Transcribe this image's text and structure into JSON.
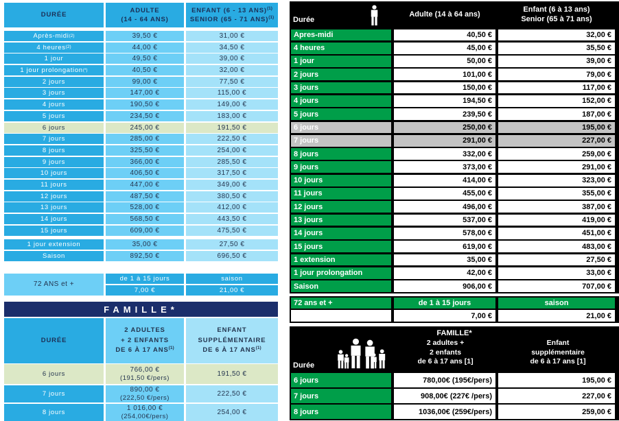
{
  "colors": {
    "blue": "#29ABE2",
    "blue_mid": "#6DCFF6",
    "blue_light": "#A4E2F9",
    "navy_bar": "#1B2E6B",
    "pale_green": "#DCE8C6",
    "green": "#009E49",
    "gray_highlight": "#C3C3C3",
    "black": "#000000"
  },
  "icons": {
    "adult": "standing-person-pictogram",
    "family": "family-group-pictogram"
  },
  "left_table": {
    "header": {
      "duree": "DURÉE",
      "adulte1": "ADULTE",
      "adulte2": "(14 - 64 ANS)",
      "enfant1": "ENFANT (6 - 13 ANS)",
      "enfant1_sup": "(1)",
      "enfant2": "SENIOR (65 - 71 ANS)",
      "enfant2_sup": "(1)"
    },
    "rows": [
      {
        "label": "Après-midi",
        "sup": "(2)",
        "adult": "39,50 €",
        "child": "31,00 €"
      },
      {
        "label": "4 heures",
        "sup": "(2)",
        "adult": "44,00 €",
        "child": "34,50 €"
      },
      {
        "label": "1 jour",
        "adult": "49,50 €",
        "child": "39,00 €"
      },
      {
        "label": "1 jour prolongation",
        "sup": "(*)",
        "adult": "40,50 €",
        "child": "32,00 €"
      },
      {
        "label": "2 jours",
        "adult": "99,00 €",
        "child": "77,50 €"
      },
      {
        "label": "3 jours",
        "adult": "147,00 €",
        "child": "115,00 €"
      },
      {
        "label": "4 jours",
        "adult": "190,50 €",
        "child": "149,00 €"
      },
      {
        "label": "5 jours",
        "adult": "234,50 €",
        "child": "183,00 €"
      },
      {
        "label": "6 jours",
        "adult": "245,00 €",
        "child": "191,50 €",
        "highlight": true
      },
      {
        "label": "7 jours",
        "adult": "285,00 €",
        "child": "222,50 €"
      },
      {
        "label": "8 jours",
        "adult": "325,50 €",
        "child": "254,00 €"
      },
      {
        "label": "9 jours",
        "adult": "366,00 €",
        "child": "285,50 €"
      },
      {
        "label": "10 jours",
        "adult": "406,50 €",
        "child": "317,50 €"
      },
      {
        "label": "11 jours",
        "adult": "447,00 €",
        "child": "349,00 €"
      },
      {
        "label": "12 jours",
        "adult": "487,50 €",
        "child": "380,50 €"
      },
      {
        "label": "13 jours",
        "adult": "528,00 €",
        "child": "412,00 €"
      },
      {
        "label": "14 jours",
        "adult": "568,50 €",
        "child": "443,50 €"
      },
      {
        "label": "15 jours",
        "adult": "609,00 €",
        "child": "475,50 €"
      }
    ],
    "extra_rows": [
      {
        "label": "1 jour extension",
        "adult": "35,00 €",
        "child": "27,50 €"
      },
      {
        "label": "Saison",
        "adult": "892,50 €",
        "child": "696,50 €"
      }
    ],
    "senior": {
      "label": "72 ANS et +",
      "col1_header": "de 1 à 15 jours",
      "col2_header": "saison",
      "col1_value": "7,00 €",
      "col2_value": "21,00 €"
    },
    "famille": {
      "title": "FAMILLE*",
      "header": {
        "duree": "DURÉE",
        "col1": [
          "2 ADULTES",
          "+ 2 ENFANTS",
          "DE 6 À 17 ANS"
        ],
        "col1_sup": "(1)",
        "col2": [
          "ENFANT",
          "SUPPLÉMENTAIRE",
          "DE 6 À 17 ANS"
        ],
        "col2_sup": "(1)"
      },
      "rows": [
        {
          "label": "6 jours",
          "price": "766,00 €",
          "per": "(191,50 €/pers)",
          "child": "191,50 €",
          "highlight": true
        },
        {
          "label": "7 jours",
          "price": "890,00 €",
          "per": "(222,50 €/pers)",
          "child": "222,50 €"
        },
        {
          "label": "8 jours",
          "price": "1 016,00 €",
          "per": "(254,00€/pers)",
          "child": "254,00 €"
        }
      ]
    }
  },
  "right_table": {
    "header": {
      "duree": "Durée",
      "adulte": "Adulte (14 à 64 ans)",
      "enfant1": "Enfant (6 à 13 ans)",
      "enfant2": "Senior (65 à 71 ans)"
    },
    "rows": [
      {
        "label": "Apres-midi",
        "adult": "40,50 €",
        "child": "32,00 €"
      },
      {
        "label": "4 heures",
        "adult": "45,00 €",
        "child": "35,50 €"
      },
      {
        "label": "1 jour",
        "adult": "50,00 €",
        "child": "39,00 €"
      },
      {
        "label": "2 jours",
        "adult": "101,00 €",
        "child": "79,00 €"
      },
      {
        "label": "3 jours",
        "adult": "150,00 €",
        "child": "117,00 €"
      },
      {
        "label": "4 jours",
        "adult": "194,50 €",
        "child": "152,00 €"
      },
      {
        "label": "5 jours",
        "adult": "239,50 €",
        "child": "187,00 €"
      },
      {
        "label": "6 jours",
        "adult": "250,00 €",
        "child": "195,00 €",
        "highlight": true
      },
      {
        "label": "7 jours",
        "adult": "291,00 €",
        "child": "227,00 €",
        "highlight": true
      },
      {
        "label": "8 jours",
        "adult": "332,00 €",
        "child": "259,00 €"
      },
      {
        "label": "9 jours",
        "adult": "373,00 €",
        "child": "291,00 €"
      },
      {
        "label": "10 jours",
        "adult": "414,00 €",
        "child": "323,00 €"
      },
      {
        "label": "11 jours",
        "adult": "455,00 €",
        "child": "355,00 €"
      },
      {
        "label": "12 jours",
        "adult": "496,00 €",
        "child": "387,00 €"
      },
      {
        "label": "13 jours",
        "adult": "537,00 €",
        "child": "419,00 €"
      },
      {
        "label": "14 jours",
        "adult": "578,00 €",
        "child": "451,00 €"
      },
      {
        "label": "15 jours",
        "adult": "619,00 €",
        "child": "483,00 €"
      },
      {
        "label": "1 extension",
        "adult": "35,00 €",
        "child": "27,50 €"
      },
      {
        "label": "1 jour prolongation",
        "adult": "42,00 €",
        "child": "33,00 €"
      },
      {
        "label": "Saison",
        "adult": "906,00 €",
        "child": "707,00 €"
      }
    ],
    "senior": {
      "label": "72 ans et +",
      "col1_header": "de 1 à 15 jours",
      "col2_header": "saison",
      "col1_value": "7,00 €",
      "col2_value": "21,00 €"
    },
    "famille": {
      "title": "FAMILLE*",
      "duree": "Durée",
      "col1": [
        "2 adultes +",
        "2 enfants",
        "de 6 à 17 ans [1]"
      ],
      "col2": [
        "Enfant",
        "supplémentaire",
        "de 6 à 17 ans [1]"
      ],
      "rows": [
        {
          "label": "6 jours",
          "price": "780,00€ (195€/pers)",
          "child": "195,00 €"
        },
        {
          "label": "7 jours",
          "price": "908,00€ (227€ /pers)",
          "child": "227,00 €"
        },
        {
          "label": "8 jours",
          "price": "1036,00€ (259€/pers)",
          "child": "259,00 €"
        }
      ]
    }
  }
}
